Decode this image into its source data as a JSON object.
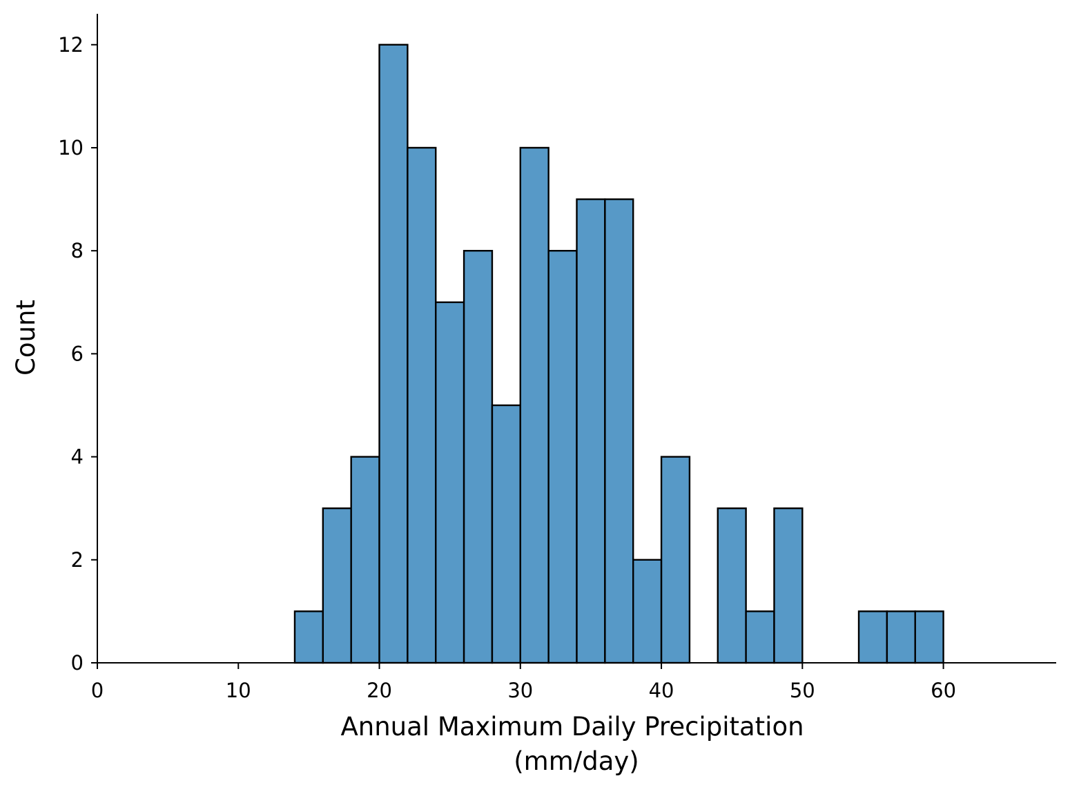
{
  "chart_data": {
    "type": "bar",
    "title": "",
    "xlabel_lines": [
      "Annual Maximum Daily Precipitation",
      "(mm/day)"
    ],
    "ylabel": "Count",
    "bin_width": 2,
    "bins": [
      {
        "start": 14,
        "end": 16,
        "count": 1
      },
      {
        "start": 16,
        "end": 18,
        "count": 3
      },
      {
        "start": 18,
        "end": 20,
        "count": 4
      },
      {
        "start": 20,
        "end": 22,
        "count": 12
      },
      {
        "start": 22,
        "end": 24,
        "count": 10
      },
      {
        "start": 24,
        "end": 26,
        "count": 7
      },
      {
        "start": 26,
        "end": 28,
        "count": 8
      },
      {
        "start": 28,
        "end": 30,
        "count": 5
      },
      {
        "start": 30,
        "end": 32,
        "count": 10
      },
      {
        "start": 32,
        "end": 34,
        "count": 8
      },
      {
        "start": 34,
        "end": 36,
        "count": 9
      },
      {
        "start": 36,
        "end": 38,
        "count": 9
      },
      {
        "start": 38,
        "end": 40,
        "count": 2
      },
      {
        "start": 40,
        "end": 42,
        "count": 4
      },
      {
        "start": 42,
        "end": 44,
        "count": 0
      },
      {
        "start": 44,
        "end": 46,
        "count": 3
      },
      {
        "start": 46,
        "end": 48,
        "count": 1
      },
      {
        "start": 48,
        "end": 50,
        "count": 3
      },
      {
        "start": 50,
        "end": 52,
        "count": 0
      },
      {
        "start": 52,
        "end": 54,
        "count": 0
      },
      {
        "start": 54,
        "end": 56,
        "count": 1
      },
      {
        "start": 56,
        "end": 58,
        "count": 1
      },
      {
        "start": 58,
        "end": 60,
        "count": 1
      }
    ],
    "xlim": [
      0,
      68
    ],
    "ylim": [
      0,
      12.6
    ],
    "xticks": [
      0,
      10,
      20,
      30,
      40,
      50,
      60
    ],
    "yticks": [
      0,
      2,
      4,
      6,
      8,
      10,
      12
    ],
    "grid": false,
    "legend": "none",
    "bar_color": "#5799c7",
    "edge_color": "#000000"
  }
}
